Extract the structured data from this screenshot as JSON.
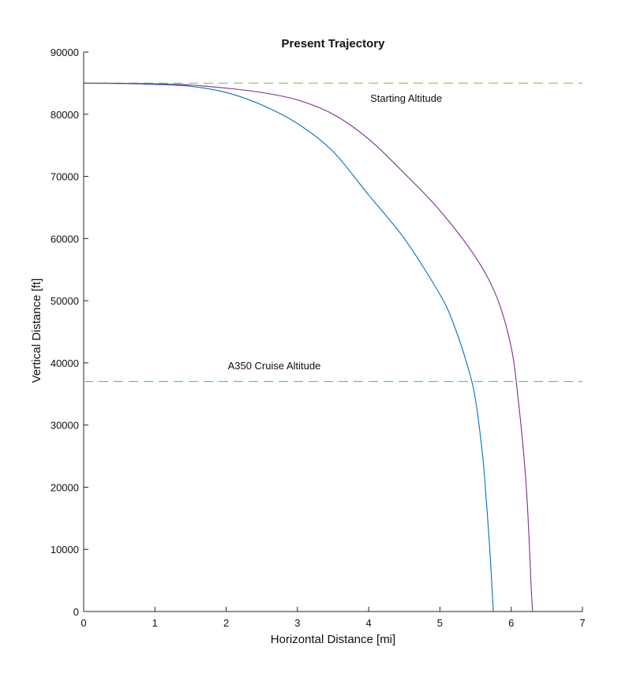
{
  "chart_data": {
    "type": "line",
    "title": "Present Trajectory",
    "xlabel": "Horizontal Distance [mi]",
    "ylabel": "Vertical Distance [ft]",
    "xlim": [
      0,
      7
    ],
    "ylim": [
      0,
      90000
    ],
    "xticks": [
      0,
      1,
      2,
      3,
      4,
      5,
      6,
      7
    ],
    "yticks": [
      0,
      10000,
      20000,
      30000,
      40000,
      50000,
      60000,
      70000,
      80000,
      90000
    ],
    "grid": false,
    "series": [
      {
        "color": "#0072BD",
        "x": [
          0,
          0.5,
          1.0,
          1.5,
          2.0,
          2.5,
          3.0,
          3.5,
          4.0,
          4.5,
          5.0,
          5.2,
          5.4,
          5.5,
          5.6,
          5.65,
          5.7,
          5.73,
          5.75
        ],
        "y": [
          85000,
          84950,
          84800,
          84500,
          83500,
          81500,
          78500,
          74000,
          67000,
          60000,
          51000,
          46000,
          39000,
          34000,
          25000,
          18000,
          10000,
          4000,
          0
        ]
      },
      {
        "color": "#7E2F8E",
        "x": [
          0,
          0.5,
          1.0,
          1.5,
          2.0,
          2.5,
          3.0,
          3.5,
          4.0,
          4.5,
          5.0,
          5.5,
          5.8,
          6.0,
          6.1,
          6.2,
          6.25,
          6.28,
          6.3
        ],
        "y": [
          85000,
          84980,
          84900,
          84700,
          84200,
          83500,
          82300,
          80000,
          76000,
          70500,
          64500,
          57000,
          50500,
          42500,
          34000,
          22000,
          12000,
          4000,
          0
        ]
      }
    ],
    "reference_lines": [
      {
        "label": "Starting Altitude",
        "y": 85000,
        "color": "#A4C26B",
        "dash": "dashed",
        "label_x": 4.0,
        "label_y": 82000
      },
      {
        "label": "A350 Cruise Altitude",
        "y": 37000,
        "color": "#4DBEEE",
        "dash": "dashed",
        "label_x": 2.0,
        "label_y": 39000
      }
    ]
  }
}
